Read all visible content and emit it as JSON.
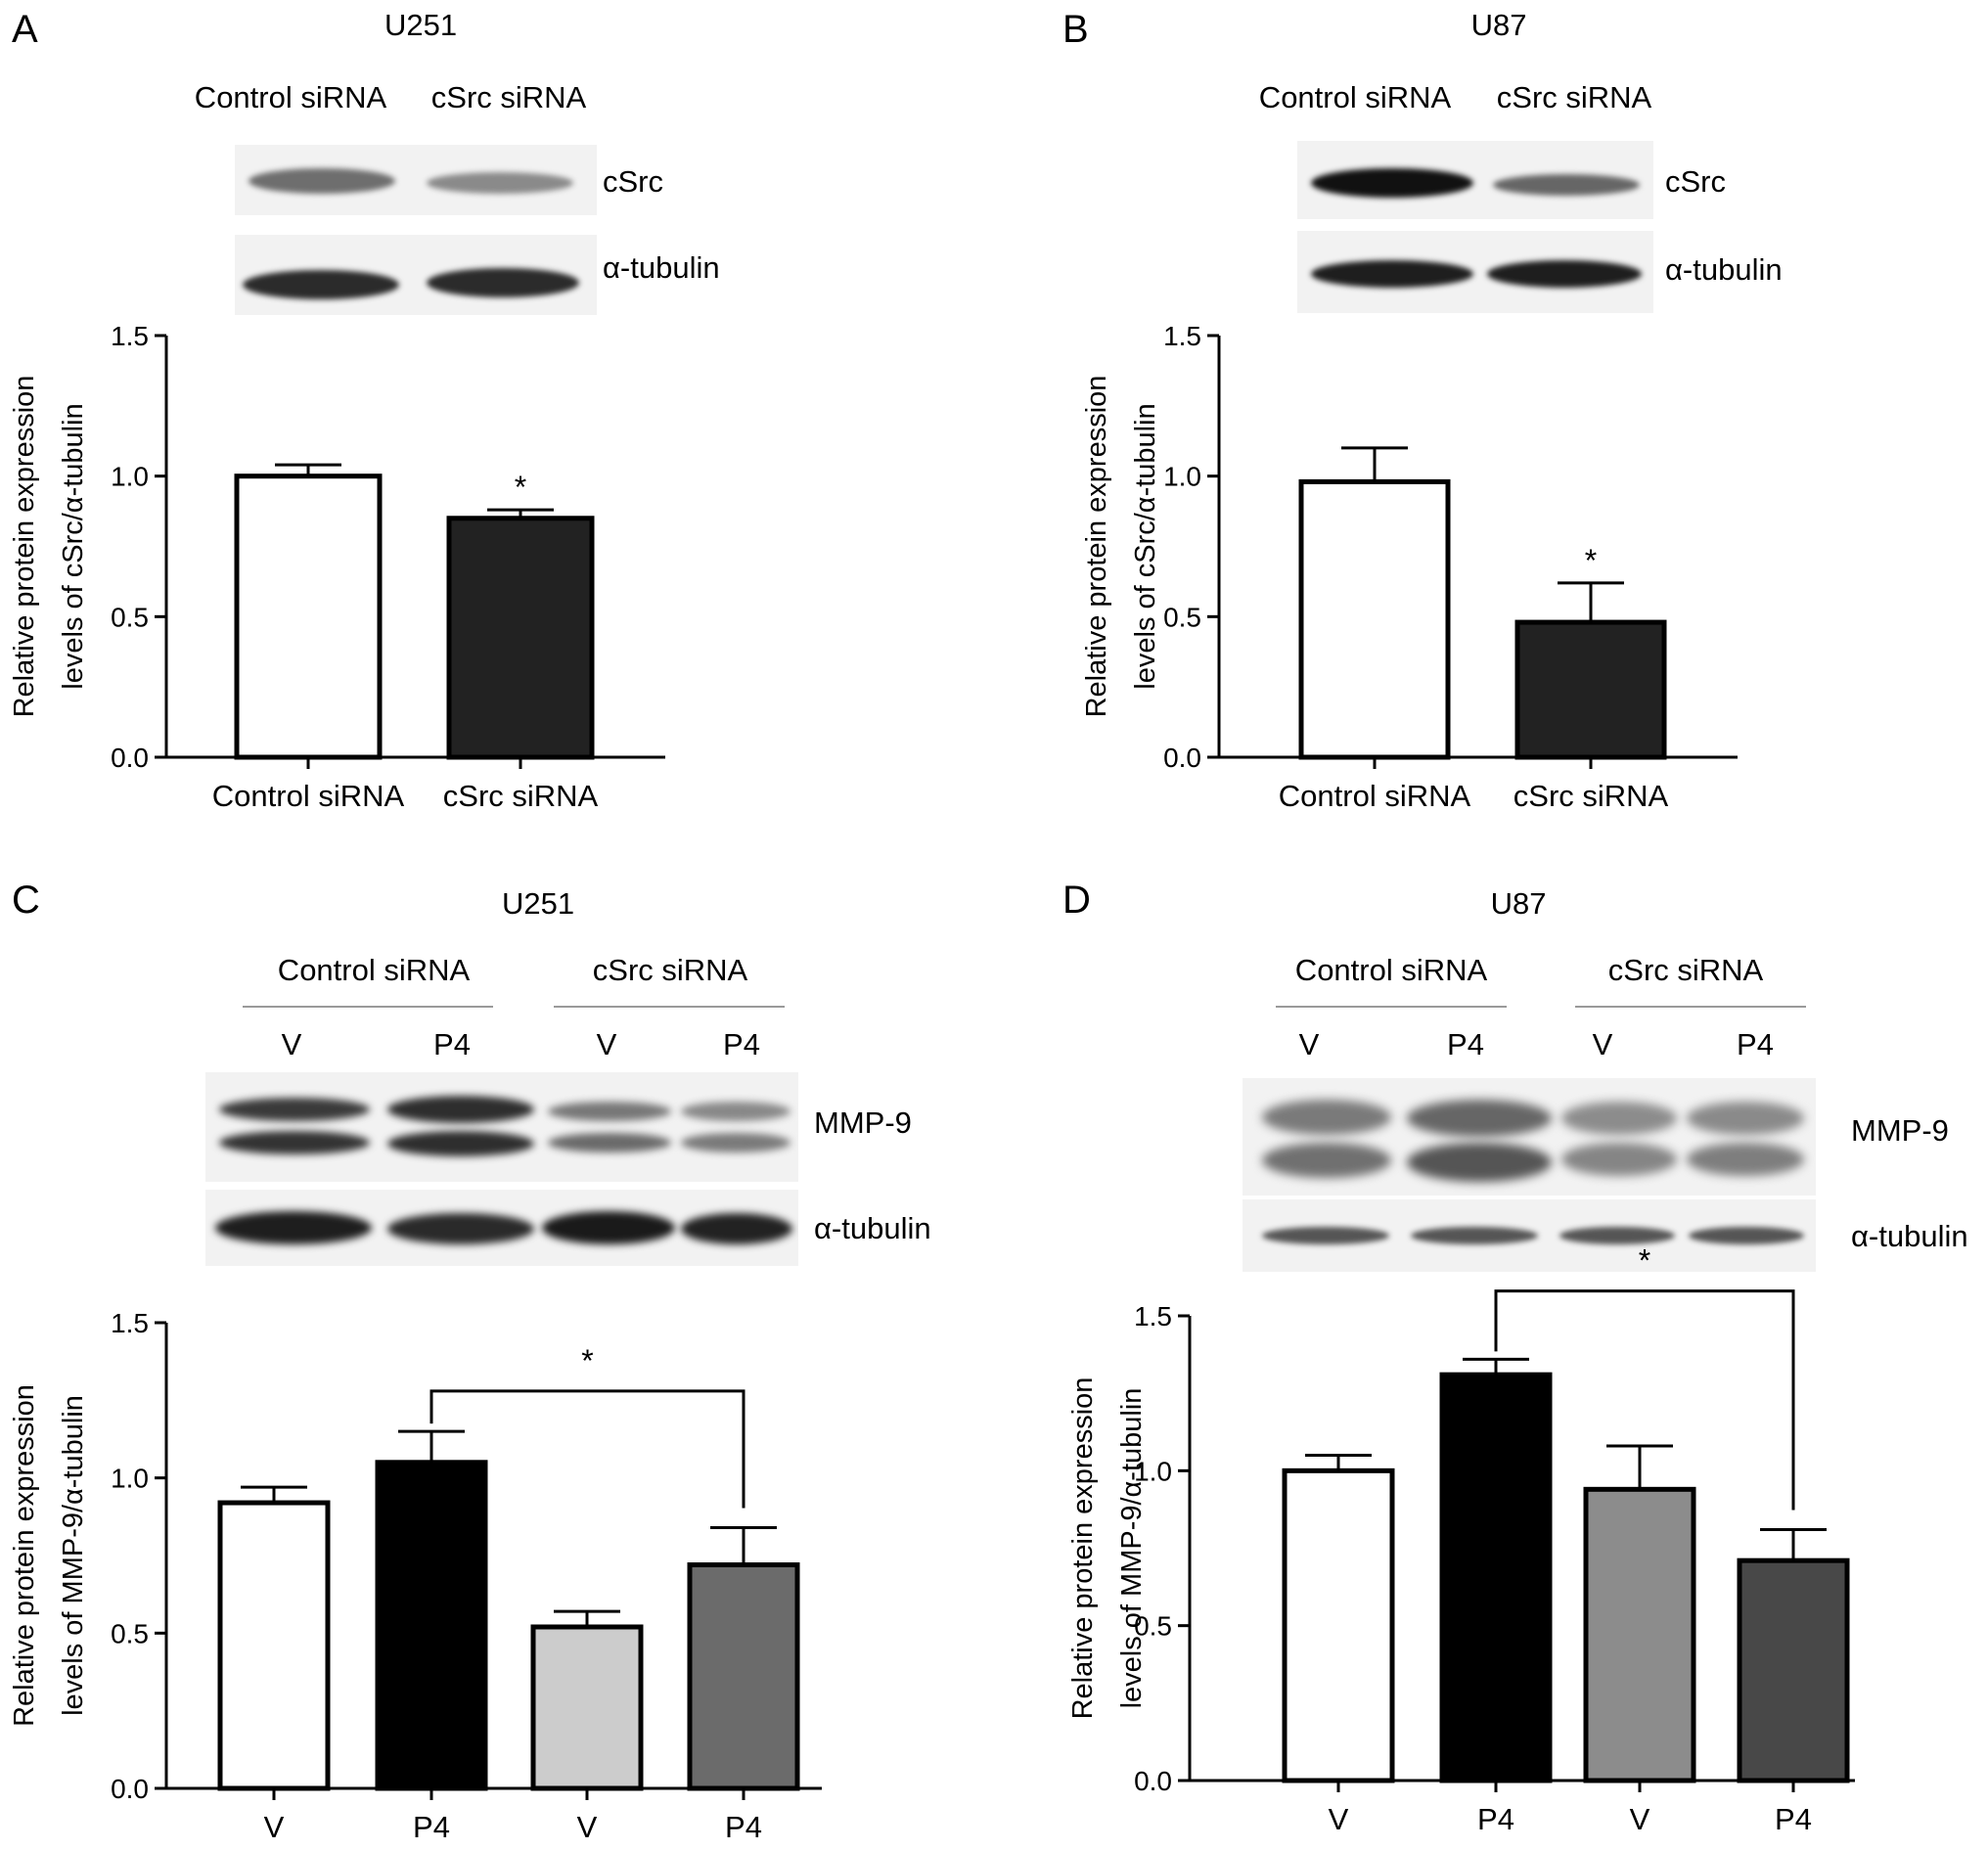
{
  "panels": [
    {
      "id": "A",
      "cell_line": "U251",
      "top_labels": [
        "Control siRNA",
        "cSrc siRNA"
      ],
      "blot_labels": [
        "cSrc",
        "α-tubulin"
      ],
      "chart_data": {
        "type": "bar",
        "categories": [
          "Control siRNA",
          "cSrc siRNA"
        ],
        "values": [
          1.0,
          0.85
        ],
        "errors": [
          0.04,
          0.03
        ],
        "colors": [
          "#ffffff",
          "#222222"
        ],
        "ylabel": [
          "Relative protein expression",
          "levels of cSrc/α-tubulin"
        ],
        "ylim": [
          0,
          1.5
        ],
        "yticks": [
          "0.0",
          "0.5",
          "1.0",
          "1.5"
        ],
        "significance": [
          {
            "bar": 1,
            "label": "*"
          }
        ],
        "brackets": []
      }
    },
    {
      "id": "B",
      "cell_line": "U87",
      "top_labels": [
        "Control siRNA",
        "cSrc siRNA"
      ],
      "blot_labels": [
        "cSrc",
        "α-tubulin"
      ],
      "chart_data": {
        "type": "bar",
        "categories": [
          "Control siRNA",
          "cSrc siRNA"
        ],
        "values": [
          0.98,
          0.48
        ],
        "errors": [
          0.12,
          0.14
        ],
        "colors": [
          "#ffffff",
          "#222222"
        ],
        "ylabel": [
          "Relative protein expression",
          "levels of cSrc/α-tubulin"
        ],
        "ylim": [
          0,
          1.5
        ],
        "yticks": [
          "0.0",
          "0.5",
          "1.0",
          "1.5"
        ],
        "significance": [
          {
            "bar": 1,
            "label": "*"
          }
        ],
        "brackets": []
      }
    },
    {
      "id": "C",
      "cell_line": "U251",
      "group_labels": [
        "Control siRNA",
        "cSrc siRNA"
      ],
      "lane_labels": [
        "V",
        "P4",
        "V",
        "P4"
      ],
      "blot_labels": [
        "MMP-9",
        "α-tubulin"
      ],
      "chart_data": {
        "type": "bar",
        "categories": [
          "V",
          "P4",
          "V",
          "P4"
        ],
        "values": [
          0.92,
          1.05,
          0.52,
          0.72
        ],
        "errors": [
          0.05,
          0.1,
          0.05,
          0.12
        ],
        "colors": [
          "#ffffff",
          "#000000",
          "#cccccc",
          "#6b6b6b"
        ],
        "ylabel": [
          "Relative protein expression",
          "levels of MMP-9/α-tubulin"
        ],
        "ylim": [
          0,
          1.5
        ],
        "yticks": [
          "0.0",
          "0.5",
          "1.0",
          "1.5"
        ],
        "significance": [],
        "brackets": [
          {
            "from": 1,
            "to": 3,
            "y": 1.28,
            "label": "*"
          }
        ]
      }
    },
    {
      "id": "D",
      "cell_line": "U87",
      "group_labels": [
        "Control siRNA",
        "cSrc siRNA"
      ],
      "lane_labels": [
        "V",
        "P4",
        "V",
        "P4"
      ],
      "blot_labels": [
        "MMP-9",
        "α-tubulin"
      ],
      "chart_data": {
        "type": "bar",
        "categories": [
          "V",
          "P4",
          "V",
          "P4"
        ],
        "values": [
          1.0,
          1.31,
          0.94,
          0.71
        ],
        "errors": [
          0.05,
          0.05,
          0.14,
          0.1
        ],
        "colors": [
          "#ffffff",
          "#000000",
          "#8c8c8c",
          "#484848"
        ],
        "ylabel": [
          "Relative protein expression",
          "levels of MMP-9/α-tubulin"
        ],
        "ylim": [
          0,
          1.5
        ],
        "yticks": [
          "0.0",
          "0.5",
          "1.0",
          "1.5"
        ],
        "significance": [],
        "brackets": [
          {
            "from": 1,
            "to": 3,
            "y": 1.58,
            "label": "*"
          }
        ]
      }
    }
  ]
}
